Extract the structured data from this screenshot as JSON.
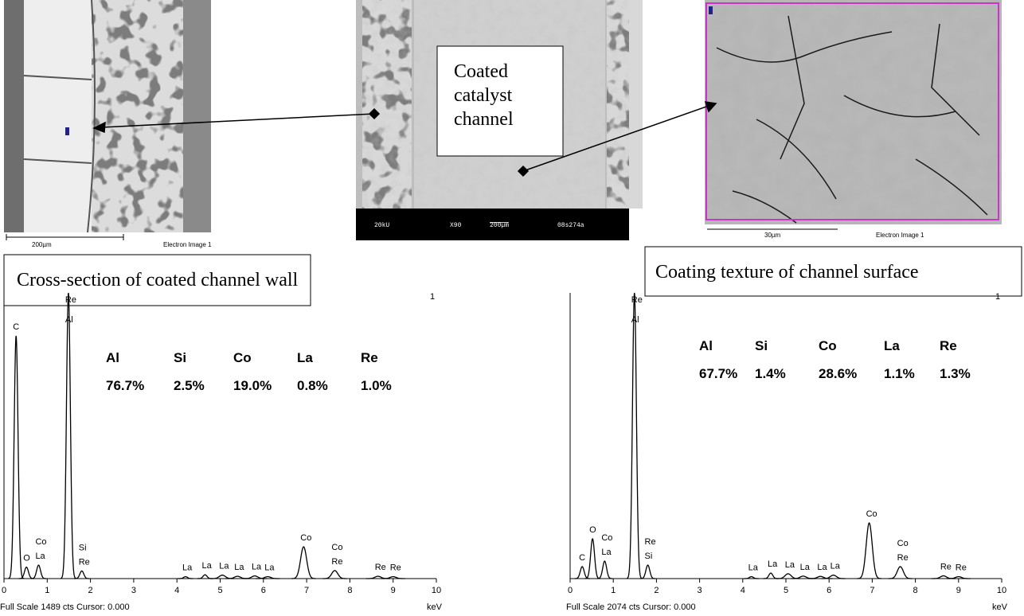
{
  "images": [
    {
      "scale_label": "200µm",
      "caption": "Electron Image 1"
    },
    {
      "info": [
        "20kU",
        "X90",
        "200µm",
        "08s274a"
      ]
    },
    {
      "scale_label": "30µm",
      "caption": "Electron Image 1"
    }
  ],
  "callouts": {
    "center": "Coated catalyst channel",
    "left": "Cross-section of coated channel wall",
    "right": "Coating texture of channel surface"
  },
  "spectra": [
    {
      "corner": "1",
      "full_scale": "Full Scale 1489 cts Cursor: 0.000",
      "unit": "keV",
      "xlim": [
        0,
        10
      ],
      "xticks": [
        0,
        1,
        2,
        3,
        4,
        5,
        6,
        7,
        8,
        9,
        10
      ],
      "ylim": [
        0,
        1489
      ],
      "table": {
        "elements": [
          "Al",
          "Si",
          "Co",
          "La",
          "Re"
        ],
        "percent": [
          "76.7%",
          "2.5%",
          "19.0%",
          "0.8%",
          "1.0%"
        ]
      },
      "peaks": [
        {
          "labels": [
            "C"
          ],
          "kev": 0.28,
          "counts": 1265
        },
        {
          "labels": [
            "O"
          ],
          "kev": 0.52,
          "counts": 60
        },
        {
          "labels": [
            "La",
            "Co"
          ],
          "kev": 0.8,
          "counts": 70
        },
        {
          "labels": [
            "Al",
            "Re"
          ],
          "kev": 1.49,
          "counts": 1489
        },
        {
          "labels": [
            "Re",
            "Si"
          ],
          "kev": 1.8,
          "counts": 40
        },
        {
          "labels": [
            "La"
          ],
          "kev": 4.2,
          "counts": 10
        },
        {
          "labels": [
            "La"
          ],
          "kev": 4.65,
          "counts": 20
        },
        {
          "labels": [
            "La"
          ],
          "kev": 5.05,
          "counts": 18
        },
        {
          "labels": [
            "La"
          ],
          "kev": 5.4,
          "counts": 12
        },
        {
          "labels": [
            "La"
          ],
          "kev": 5.8,
          "counts": 14
        },
        {
          "labels": [
            "La"
          ],
          "kev": 6.1,
          "counts": 10
        },
        {
          "labels": [
            "Co"
          ],
          "kev": 6.93,
          "counts": 166
        },
        {
          "labels": [
            "Re",
            "Co"
          ],
          "kev": 7.65,
          "counts": 42
        },
        {
          "labels": [
            "Re"
          ],
          "kev": 8.65,
          "counts": 12
        },
        {
          "labels": [
            "Re"
          ],
          "kev": 9.0,
          "counts": 10
        }
      ]
    },
    {
      "corner": "1",
      "full_scale": "Full Scale 2074 cts Cursor: 0.000",
      "unit": "keV",
      "xlim": [
        0,
        10
      ],
      "xticks": [
        0,
        1,
        2,
        3,
        4,
        5,
        6,
        7,
        8,
        9,
        10
      ],
      "ylim": [
        0,
        2074
      ],
      "table": {
        "elements": [
          "Al",
          "Si",
          "Co",
          "La",
          "Re"
        ],
        "percent": [
          "67.7%",
          "1.4%",
          "28.6%",
          "1.1%",
          "1.3%"
        ]
      },
      "peaks": [
        {
          "labels": [
            "C"
          ],
          "kev": 0.28,
          "counts": 87
        },
        {
          "labels": [
            "O"
          ],
          "kev": 0.52,
          "counts": 289
        },
        {
          "labels": [
            "La",
            "Co"
          ],
          "kev": 0.8,
          "counts": 127
        },
        {
          "labels": [
            "Al",
            "Re"
          ],
          "kev": 1.49,
          "counts": 2074
        },
        {
          "labels": [
            "Si",
            "Re"
          ],
          "kev": 1.8,
          "counts": 98
        },
        {
          "labels": [
            "La"
          ],
          "kev": 4.2,
          "counts": 14
        },
        {
          "labels": [
            "La"
          ],
          "kev": 4.65,
          "counts": 40
        },
        {
          "labels": [
            "La"
          ],
          "kev": 5.05,
          "counts": 35
        },
        {
          "labels": [
            "La"
          ],
          "kev": 5.4,
          "counts": 18
        },
        {
          "labels": [
            "La"
          ],
          "kev": 5.8,
          "counts": 16
        },
        {
          "labels": [
            "La"
          ],
          "kev": 6.1,
          "counts": 25
        },
        {
          "labels": [
            "Co"
          ],
          "kev": 6.93,
          "counts": 404
        },
        {
          "labels": [
            "Re",
            "Co"
          ],
          "kev": 7.65,
          "counts": 87
        },
        {
          "labels": [
            "Re"
          ],
          "kev": 8.65,
          "counts": 20
        },
        {
          "labels": [
            "Re"
          ],
          "kev": 9.0,
          "counts": 14
        }
      ]
    }
  ]
}
